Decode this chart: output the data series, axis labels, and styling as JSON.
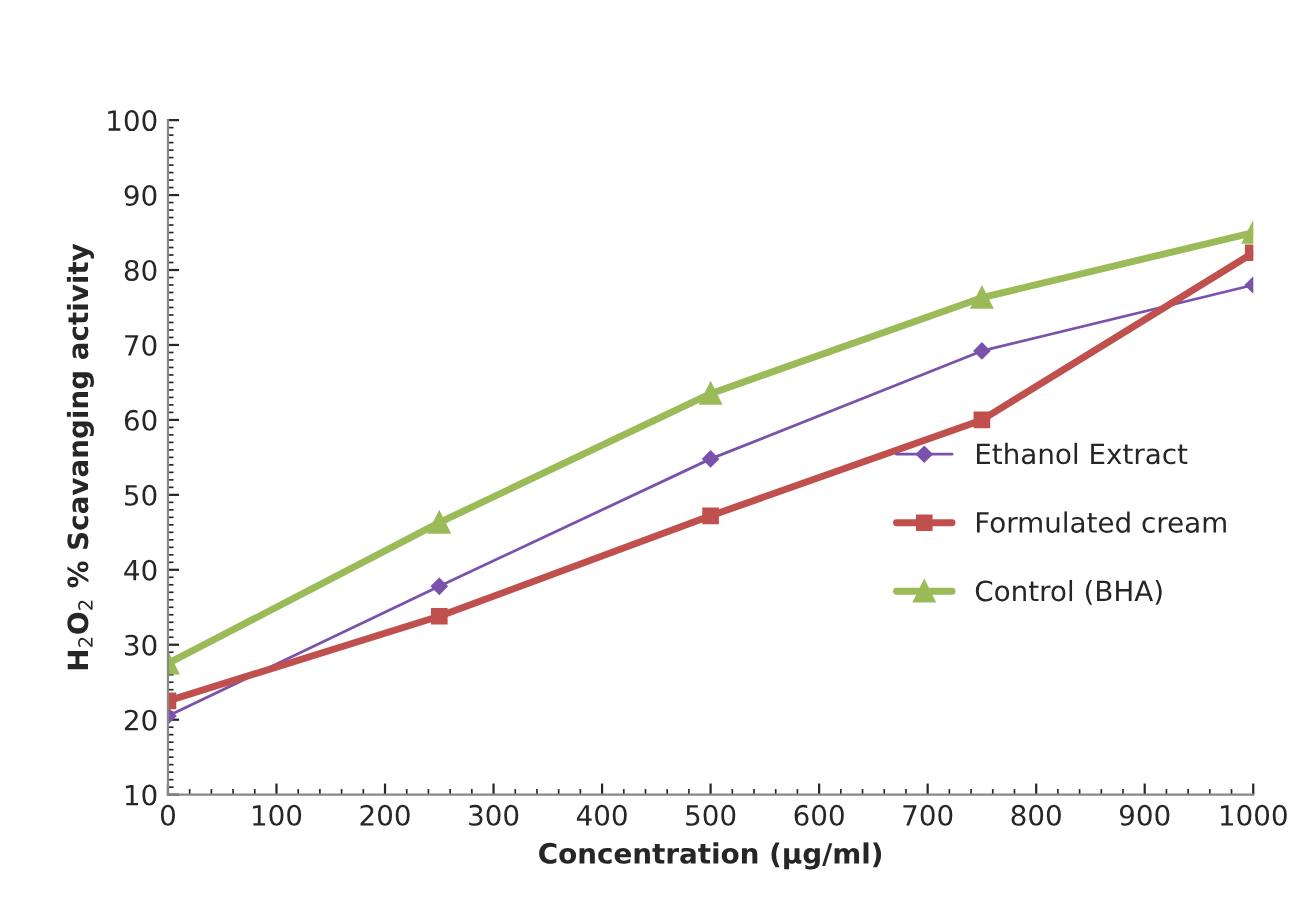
{
  "chart_data": {
    "type": "line",
    "xlabel": "Concentration (µg/ml)",
    "ylabel": "H$_{2}$O$_{2}$ % Scavanging activity",
    "x": [
      0,
      250,
      500,
      750,
      1000
    ],
    "series": [
      {
        "name": "Ethanol Extract",
        "color": "#7b52ab",
        "values": [
          20.5,
          37.8,
          54.8,
          69.2,
          78
        ],
        "marker": "diamond"
      },
      {
        "name": "Formulated cream",
        "color": "#c0504d",
        "values": [
          22.5,
          33.8,
          47.2,
          60,
          82.3
        ],
        "marker": "square"
      },
      {
        "name": "Control (BHA)",
        "color": "#9bbb59",
        "values": [
          27.5,
          46.3,
          63.5,
          76.3,
          85
        ],
        "marker": "triangle"
      }
    ],
    "xlim": [
      0,
      1000
    ],
    "xticks": [
      0,
      100,
      200,
      300,
      400,
      500,
      600,
      700,
      800,
      900,
      1000
    ],
    "ylim": [
      10,
      100
    ],
    "yticks": [
      10,
      20,
      30,
      40,
      50,
      60,
      70,
      80,
      90,
      100
    ],
    "grid": false,
    "legend": "right",
    "line_style": "solid"
  }
}
